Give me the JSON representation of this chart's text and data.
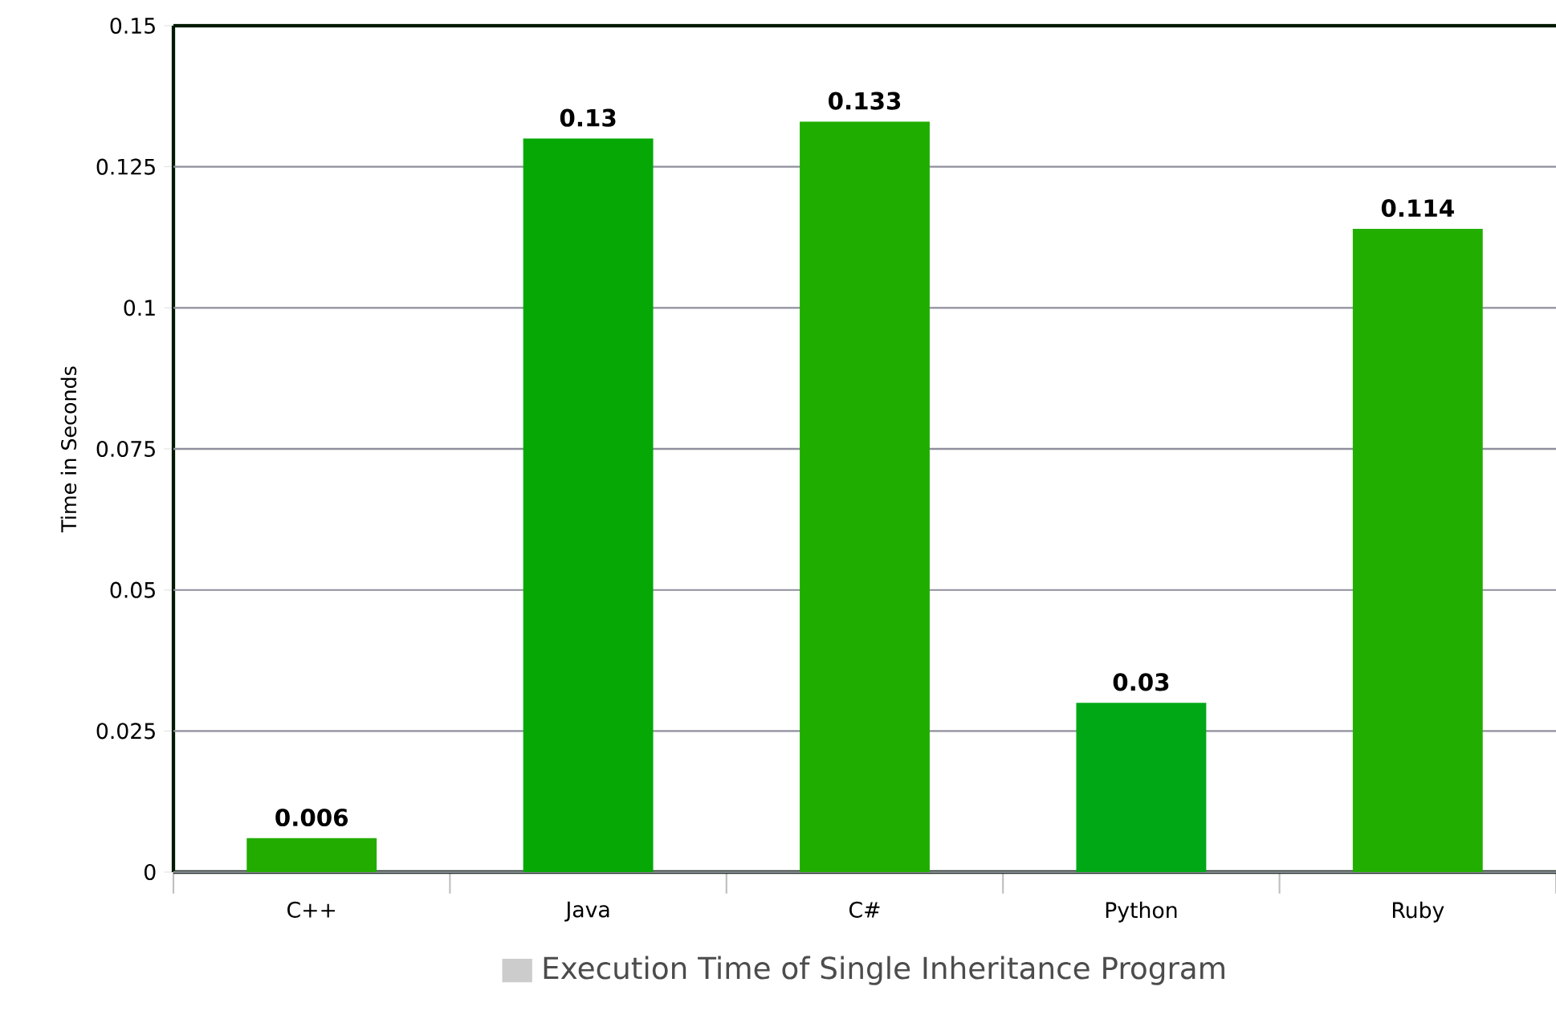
{
  "chart_data": {
    "type": "bar",
    "ylabel": "Time in Seconds",
    "categories": [
      "C++",
      "Java",
      "C#",
      "Python",
      "Ruby"
    ],
    "series": [
      {
        "name": "Execution Time of Single Inheritance Program",
        "color": "#cccccc",
        "colors": [
          "#22ac00",
          "#05a805",
          "#1fae00",
          "#00a816",
          "#22ae00"
        ],
        "values": [
          0.006,
          0.13,
          0.133,
          0.03,
          0.114
        ]
      }
    ],
    "ylim": [
      0,
      0.15
    ],
    "yticks": [
      0,
      0.025,
      0.05,
      0.075,
      0.1,
      0.125,
      0.15
    ],
    "grid": "y",
    "data_labels": true,
    "legend": "bottom"
  }
}
